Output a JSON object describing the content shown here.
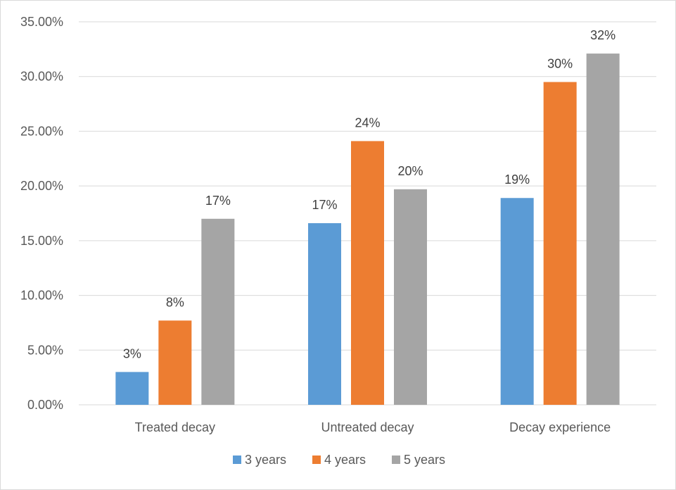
{
  "chart_data": {
    "type": "bar",
    "categories": [
      "Treated decay",
      "Untreated decay",
      "Decay experience"
    ],
    "series": [
      {
        "name": "3 years",
        "color": "#5b9bd5",
        "values": [
          3.0,
          16.6,
          18.9
        ],
        "labels": [
          "3%",
          "17%",
          "19%"
        ]
      },
      {
        "name": "4 years",
        "color": "#ed7d31",
        "values": [
          7.7,
          24.1,
          29.5
        ],
        "labels": [
          "8%",
          "24%",
          "30%"
        ]
      },
      {
        "name": "5 years",
        "color": "#a5a5a5",
        "values": [
          17.0,
          19.7,
          32.1
        ],
        "labels": [
          "17%",
          "20%",
          "32%"
        ]
      }
    ],
    "ylim": [
      0,
      35
    ],
    "yticks": [
      0,
      5,
      10,
      15,
      20,
      25,
      30,
      35
    ],
    "ytick_labels": [
      "0.00%",
      "5.00%",
      "10.00%",
      "15.00%",
      "20.00%",
      "25.00%",
      "30.00%",
      "35.00%"
    ],
    "grid": true,
    "legend_position": "bottom",
    "title": "",
    "xlabel": "",
    "ylabel": ""
  }
}
